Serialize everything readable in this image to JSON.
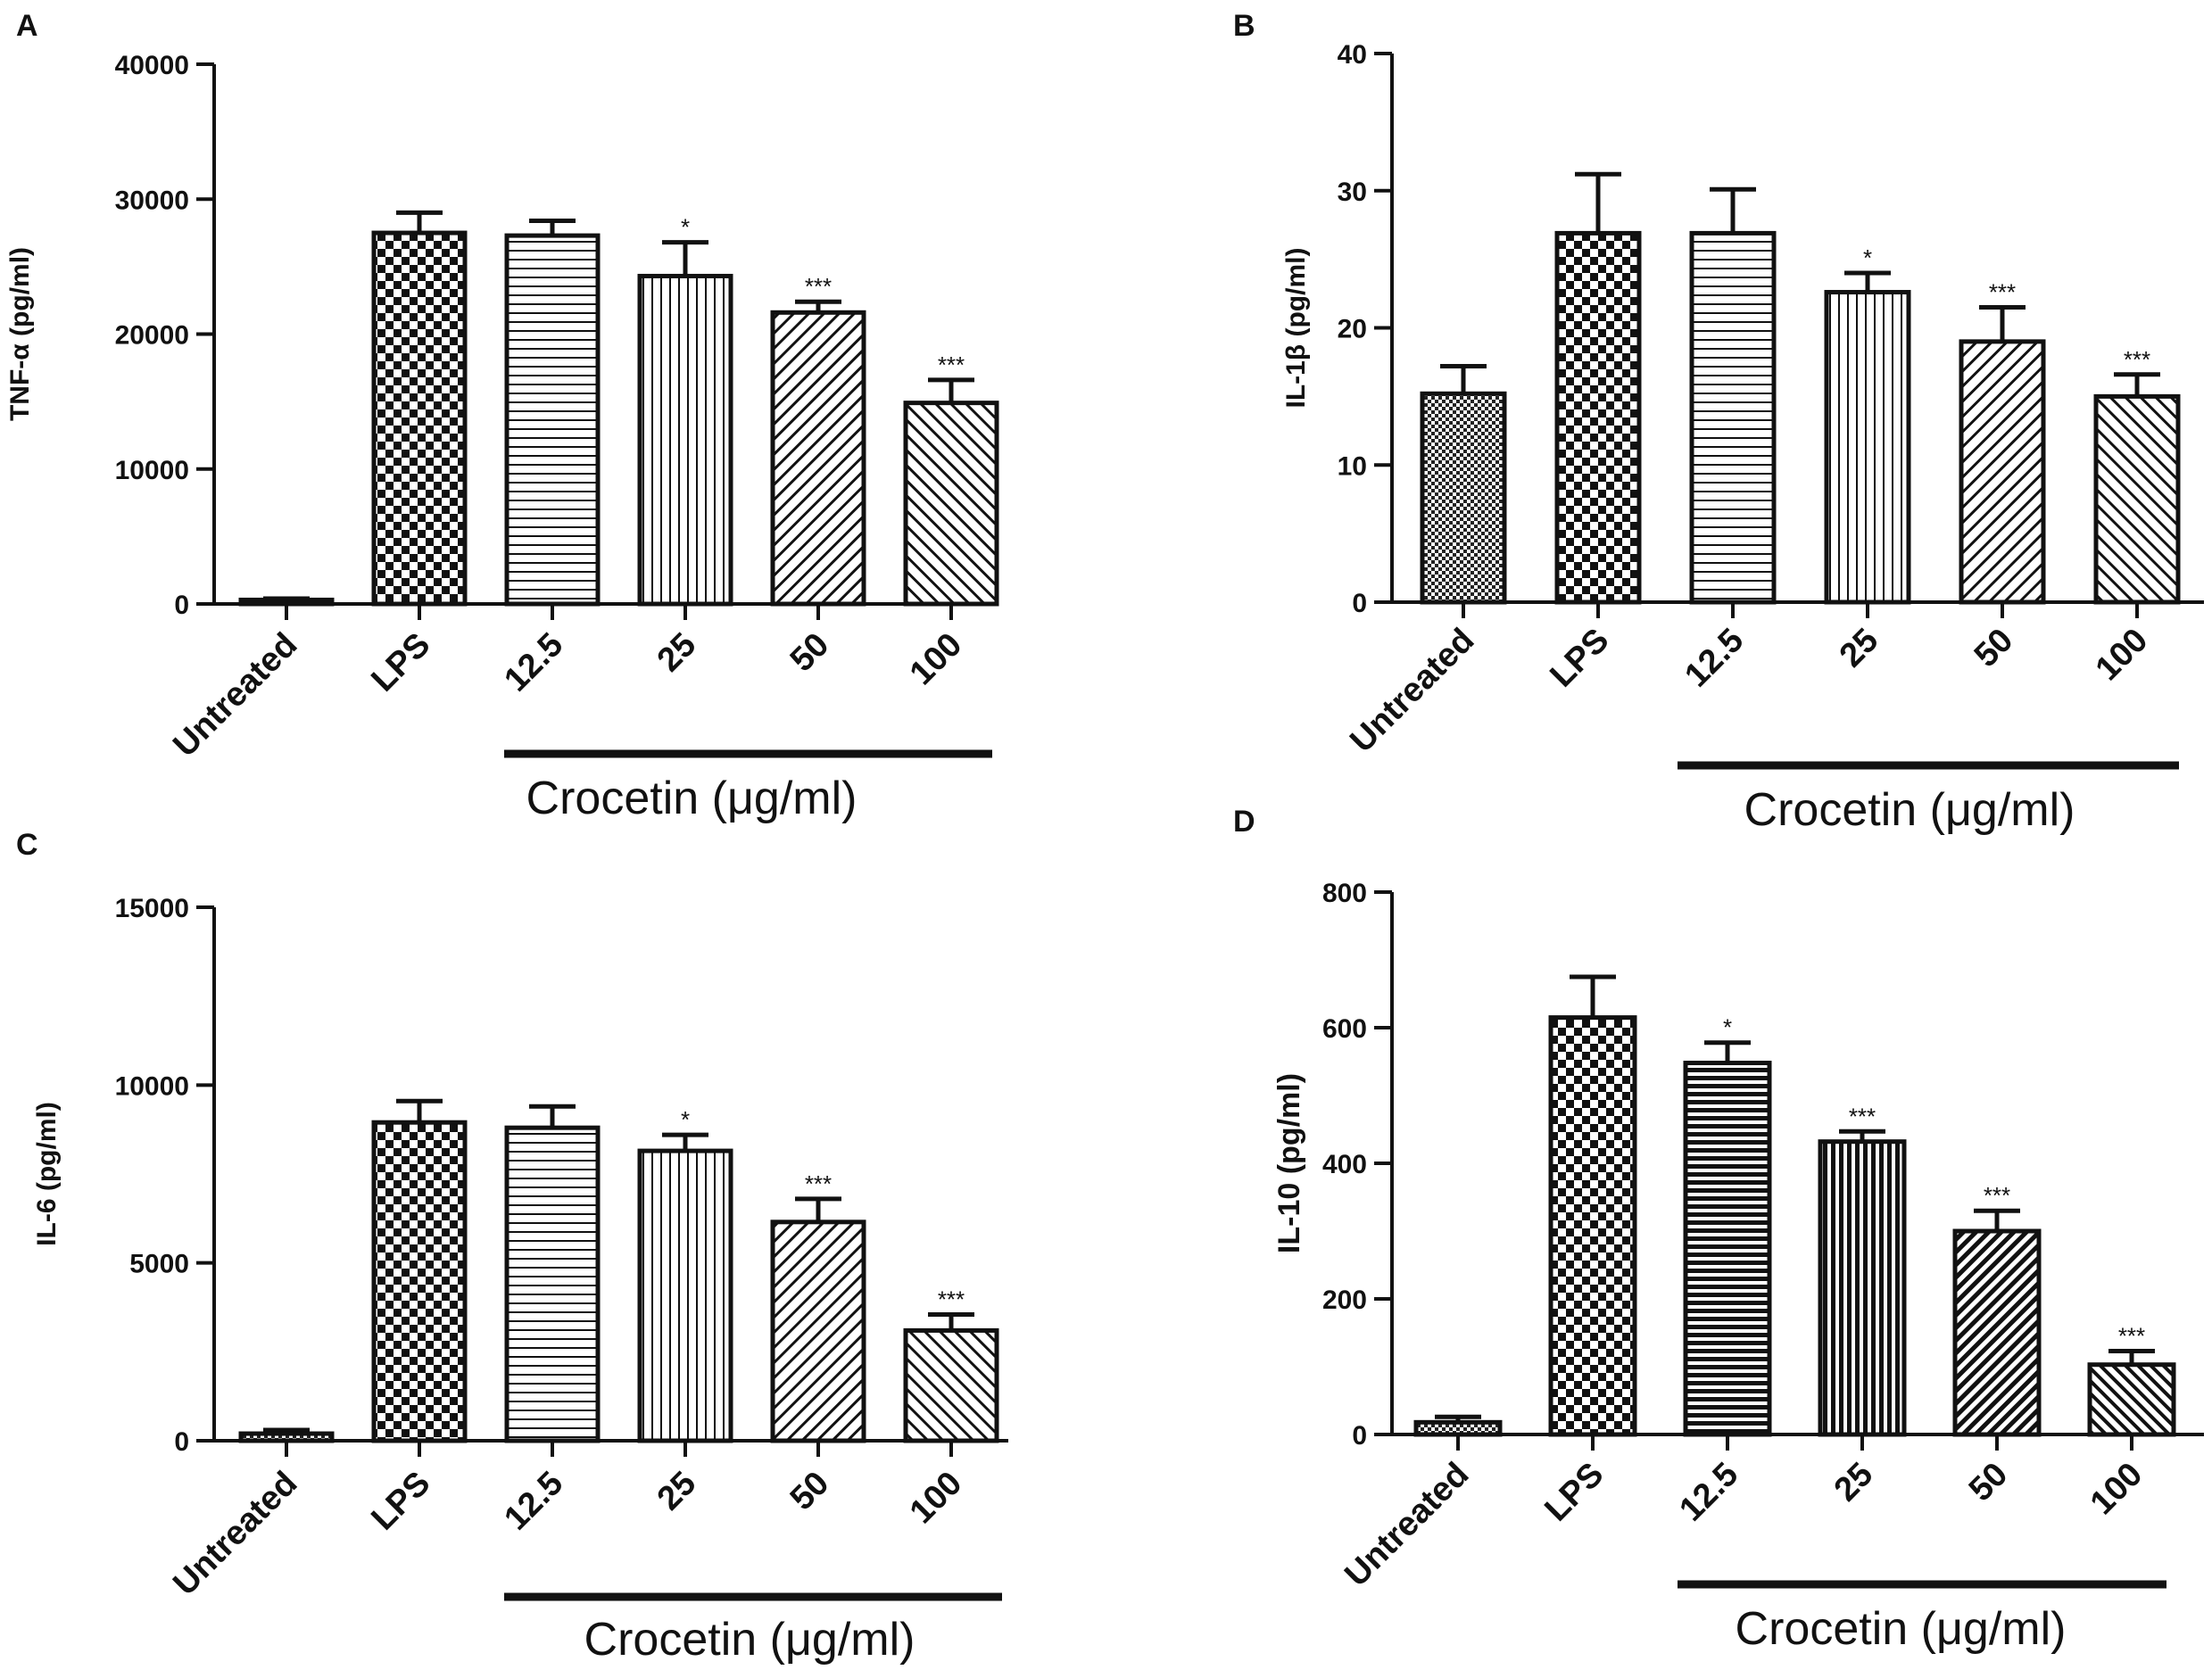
{
  "chart_data": [
    {
      "panel": "A",
      "type": "bar",
      "ylabel": "TNF-α (pg/ml)",
      "categories": [
        "Untreated",
        "LPS",
        "12.5",
        "25",
        "50",
        "100"
      ],
      "values": [
        300,
        27500,
        27300,
        24300,
        21600,
        14900
      ],
      "errors": [
        100,
        1500,
        1100,
        2500,
        800,
        1700
      ],
      "significance": [
        "",
        "",
        "",
        "*",
        "***",
        "***"
      ],
      "patterns": [
        "dots",
        "checker",
        "hlines",
        "vlines",
        "diag-right",
        "diag-left"
      ],
      "yticks": [
        "0",
        "10000",
        "20000",
        "30000",
        "40000"
      ],
      "ylim": [
        0,
        40000
      ],
      "group_label": "Crocetin (μg/ml)"
    },
    {
      "panel": "B",
      "type": "bar",
      "ylabel": "IL-1β (pg/ml)",
      "categories": [
        "Untreated",
        "LPS",
        "12.5",
        "25",
        "50",
        "100"
      ],
      "values": [
        15.2,
        26.9,
        26.9,
        22.6,
        19.0,
        15.0
      ],
      "errors": [
        2.0,
        4.3,
        3.2,
        1.4,
        2.5,
        1.6
      ],
      "significance": [
        "",
        "",
        "",
        "*",
        "***",
        "***"
      ],
      "patterns": [
        "dots",
        "checker",
        "hlines",
        "vlines",
        "diag-right",
        "diag-left"
      ],
      "yticks": [
        "0",
        "10",
        "20",
        "30",
        "40"
      ],
      "ylim": [
        0,
        40
      ],
      "group_label": "Crocetin (μg/ml)"
    },
    {
      "panel": "C",
      "type": "bar",
      "ylabel": "IL-6 (pg/ml)",
      "categories": [
        "Untreated",
        "LPS",
        "12.5",
        "25",
        "50",
        "100"
      ],
      "values": [
        200,
        8950,
        8800,
        8150,
        6150,
        3100
      ],
      "errors": [
        100,
        600,
        600,
        450,
        650,
        450
      ],
      "significance": [
        "",
        "",
        "",
        "*",
        "***",
        "***"
      ],
      "patterns": [
        "dots",
        "checker",
        "hlines",
        "vlines",
        "diag-right",
        "diag-left"
      ],
      "yticks": [
        "0",
        "5000",
        "10000",
        "15000"
      ],
      "ylim": [
        0,
        15000
      ],
      "group_label": "Crocetin (μg/ml)"
    },
    {
      "panel": "D",
      "type": "bar",
      "ylabel": "IL-10 (pg/ml)",
      "categories": [
        "Untreated",
        "LPS",
        "12.5",
        "25",
        "50",
        "100"
      ],
      "values": [
        18,
        615,
        548,
        432,
        300,
        103
      ],
      "errors": [
        8,
        60,
        30,
        15,
        30,
        20
      ],
      "significance": [
        "",
        "",
        "*",
        "***",
        "***",
        "***"
      ],
      "patterns": [
        "dots",
        "checker",
        "hlines-dense",
        "vlines-dense",
        "diag-right-dense",
        "diag-left-dense"
      ],
      "yticks": [
        "0",
        "200",
        "400",
        "600",
        "800"
      ],
      "ylim": [
        0,
        800
      ],
      "group_label": "Crocetin (μg/ml)"
    }
  ],
  "colors": {
    "ink": "#111111",
    "background": "#ffffff"
  }
}
